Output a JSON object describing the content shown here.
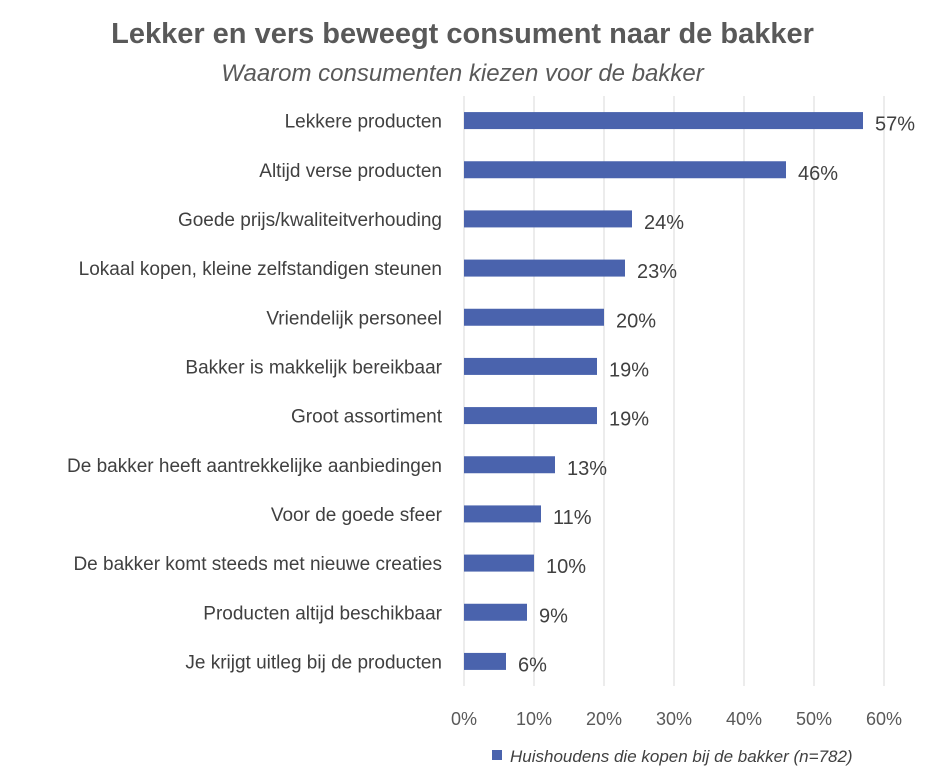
{
  "chart_data": {
    "type": "bar",
    "orientation": "horizontal",
    "title": "Lekker en vers beweegt consument naar de bakker",
    "subtitle": "Waarom consumenten kiezen voor de bakker",
    "categories": [
      "Lekkere producten",
      "Altijd verse producten",
      "Goede prijs/kwaliteitverhouding",
      "Lokaal kopen, kleine zelfstandigen steunen",
      "Vriendelijk personeel",
      "Bakker is makkelijk bereikbaar",
      "Groot assortiment",
      "De bakker heeft aantrekkelijke aanbiedingen",
      "Voor de goede sfeer",
      "De bakker komt steeds met nieuwe creaties",
      "Producten altijd beschikbaar",
      "Je krijgt uitleg bij de producten"
    ],
    "series": [
      {
        "name": "Huishoudens die kopen bij de bakker (n=782)",
        "values": [
          57,
          46,
          24,
          23,
          20,
          19,
          19,
          13,
          11,
          10,
          9,
          6
        ],
        "labels": [
          "57%",
          "46%",
          "24%",
          "23%",
          "20%",
          "19%",
          "19%",
          "13%",
          "11%",
          "10%",
          "9%",
          "6%"
        ],
        "color": "#4a63ad"
      }
    ],
    "xlim": [
      0,
      60
    ],
    "xticks": [
      0,
      10,
      20,
      30,
      40,
      50,
      60
    ],
    "xtick_labels": [
      "0%",
      "10%",
      "20%",
      "30%",
      "40%",
      "50%",
      "60%"
    ],
    "grid": true,
    "grid_color": "#d9d9d9",
    "legend_position": "bottom-right"
  }
}
